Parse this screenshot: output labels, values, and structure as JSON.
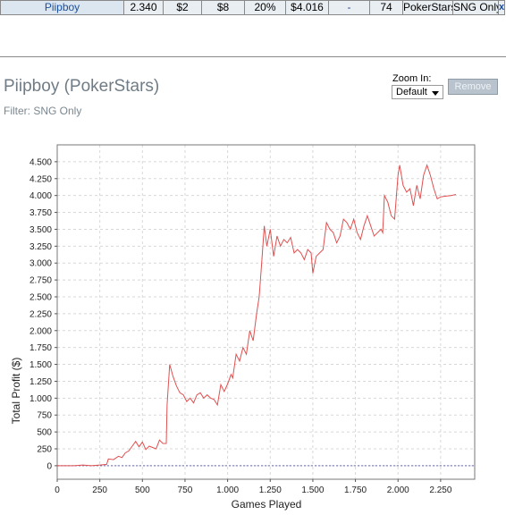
{
  "summary_row": {
    "player": "Piipboy",
    "games": "2.340",
    "avg_stake": "$2",
    "avg_profit": "$8",
    "roi": "20%",
    "total_profit": "$4.016",
    "dash": "-",
    "count": "74",
    "site": "PokerStars",
    "filter": "SNG Only",
    "remove_glyph": "x"
  },
  "header": {
    "title": "Piipboy (PokerStars)",
    "filter": "Filter: SNG Only"
  },
  "zoom": {
    "label": "Zoom In:",
    "selected": "Default"
  },
  "remove_button": {
    "label": "Remove"
  },
  "colors": {
    "line": "#e05050",
    "zero_line": "#6a6ab0",
    "grid": "#d8d8d8"
  },
  "chart_data": {
    "type": "line",
    "xlabel": "Games Played",
    "ylabel": "Total Profit ($)",
    "xlim": [
      0,
      2450
    ],
    "ylim": [
      -200,
      4750
    ],
    "x_ticks": [
      0,
      250,
      500,
      750,
      1000,
      1250,
      1500,
      1750,
      2000,
      2250
    ],
    "x_tick_labels": [
      "0",
      "250",
      "500",
      "750",
      "1.000",
      "1.250",
      "1.500",
      "1.750",
      "2.000",
      "2.250"
    ],
    "y_ticks": [
      0,
      250,
      500,
      750,
      1000,
      1250,
      1500,
      1750,
      2000,
      2250,
      2500,
      2750,
      3000,
      3250,
      3500,
      3750,
      4000,
      4250,
      4500
    ],
    "y_tick_labels": [
      "0",
      "250",
      "500",
      "750",
      "1.000",
      "1.250",
      "1.500",
      "1.750",
      "2.000",
      "2.250",
      "2.500",
      "2.750",
      "3.000",
      "3.250",
      "3.500",
      "3.750",
      "4.000",
      "4.250",
      "4.500"
    ],
    "grid": true,
    "series": [
      {
        "points": [
          [
            0,
            0
          ],
          [
            100,
            0
          ],
          [
            150,
            10
          ],
          [
            200,
            0
          ],
          [
            250,
            10
          ],
          [
            290,
            20
          ],
          [
            300,
            100
          ],
          [
            330,
            90
          ],
          [
            360,
            140
          ],
          [
            380,
            120
          ],
          [
            400,
            190
          ],
          [
            420,
            220
          ],
          [
            440,
            290
          ],
          [
            460,
            360
          ],
          [
            480,
            280
          ],
          [
            500,
            350
          ],
          [
            520,
            240
          ],
          [
            540,
            290
          ],
          [
            560,
            270
          ],
          [
            580,
            250
          ],
          [
            600,
            380
          ],
          [
            620,
            330
          ],
          [
            640,
            330
          ],
          [
            645,
            900
          ],
          [
            660,
            1500
          ],
          [
            680,
            1320
          ],
          [
            700,
            1180
          ],
          [
            720,
            1080
          ],
          [
            740,
            1050
          ],
          [
            760,
            950
          ],
          [
            780,
            1000
          ],
          [
            800,
            930
          ],
          [
            820,
            1050
          ],
          [
            840,
            1080
          ],
          [
            860,
            1000
          ],
          [
            880,
            1050
          ],
          [
            900,
            1000
          ],
          [
            920,
            980
          ],
          [
            940,
            900
          ],
          [
            960,
            1200
          ],
          [
            980,
            1100
          ],
          [
            1000,
            1210
          ],
          [
            1020,
            1350
          ],
          [
            1030,
            1300
          ],
          [
            1050,
            1650
          ],
          [
            1070,
            1550
          ],
          [
            1090,
            1750
          ],
          [
            1110,
            1650
          ],
          [
            1130,
            2000
          ],
          [
            1150,
            1850
          ],
          [
            1170,
            2250
          ],
          [
            1185,
            2500
          ],
          [
            1200,
            3000
          ],
          [
            1215,
            3550
          ],
          [
            1230,
            3250
          ],
          [
            1250,
            3500
          ],
          [
            1270,
            3100
          ],
          [
            1290,
            3400
          ],
          [
            1310,
            3250
          ],
          [
            1330,
            3350
          ],
          [
            1350,
            3300
          ],
          [
            1370,
            3380
          ],
          [
            1390,
            3150
          ],
          [
            1410,
            3200
          ],
          [
            1430,
            3150
          ],
          [
            1450,
            3050
          ],
          [
            1470,
            3200
          ],
          [
            1490,
            3150
          ],
          [
            1500,
            2850
          ],
          [
            1520,
            3100
          ],
          [
            1540,
            3150
          ],
          [
            1560,
            3200
          ],
          [
            1580,
            3600
          ],
          [
            1600,
            3500
          ],
          [
            1620,
            3450
          ],
          [
            1640,
            3300
          ],
          [
            1660,
            3400
          ],
          [
            1680,
            3650
          ],
          [
            1700,
            3600
          ],
          [
            1720,
            3500
          ],
          [
            1740,
            3650
          ],
          [
            1760,
            3450
          ],
          [
            1780,
            3350
          ],
          [
            1800,
            3550
          ],
          [
            1820,
            3700
          ],
          [
            1840,
            3550
          ],
          [
            1860,
            3400
          ],
          [
            1880,
            3450
          ],
          [
            1900,
            3500
          ],
          [
            1910,
            3450
          ],
          [
            1920,
            4000
          ],
          [
            1940,
            3900
          ],
          [
            1960,
            3700
          ],
          [
            1980,
            3650
          ],
          [
            2000,
            4300
          ],
          [
            2010,
            4450
          ],
          [
            2030,
            4150
          ],
          [
            2050,
            4050
          ],
          [
            2070,
            4100
          ],
          [
            2090,
            3850
          ],
          [
            2110,
            4150
          ],
          [
            2130,
            3950
          ],
          [
            2150,
            4300
          ],
          [
            2170,
            4450
          ],
          [
            2190,
            4300
          ],
          [
            2210,
            4100
          ],
          [
            2230,
            3950
          ],
          [
            2250,
            3980
          ],
          [
            2280,
            3990
          ],
          [
            2310,
            4000
          ],
          [
            2340,
            4016
          ]
        ]
      }
    ]
  }
}
